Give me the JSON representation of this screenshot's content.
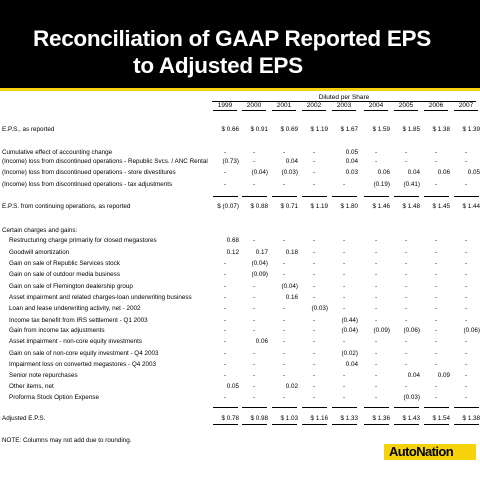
{
  "header": {
    "title_line1": "Reconciliation of GAAP Reported EPS",
    "title_line2": "to Adjusted EPS"
  },
  "table": {
    "diluted_label": "Diluted per Share",
    "years": [
      "1999",
      "2000",
      "2001",
      "2002",
      "2003",
      "2004",
      "2005",
      "2006",
      "2007"
    ],
    "rows": [
      {
        "label": "E.P.S., as reported",
        "values": [
          "$  0.66",
          "$  0.91",
          "$  0.69",
          "$  1.19",
          "$  1.67",
          "$  1.59",
          "$  1.85",
          "$  1.38",
          "$  1.39"
        ]
      },
      {
        "label": "Cumulative effect of accounting change",
        "values": [
          "-",
          "-",
          "-",
          "-",
          "0.05",
          "-",
          "-",
          "-",
          "-"
        ]
      },
      {
        "label": "(Income) loss from discontinued operations - Republic Svcs. / ANC Rental",
        "values": [
          "(0.73)",
          "-",
          "0.04",
          "-",
          "0.04",
          "-",
          "-",
          "-",
          "-"
        ]
      },
      {
        "label": "(Income) loss from discontinued operations - store divestitures",
        "values": [
          "-",
          "(0.04)",
          "(0.03)",
          "-",
          "0.03",
          "0.06",
          "0.04",
          "0.06",
          "0.05"
        ]
      },
      {
        "label": "(Income) loss from discontinued operations - tax adjustments",
        "values": [
          "-",
          "-",
          "-",
          "-",
          "-",
          "(0.19)",
          "(0.41)",
          "-",
          "-"
        ]
      },
      {
        "label": "E.P.S. from continuing operations, as reported",
        "values": [
          "$ (0.07)",
          "$  0.88",
          "$  0.71",
          "$  1.19",
          "$  1.80",
          "$  1.46",
          "$  1.48",
          "$  1.45",
          "$  1.44"
        ]
      },
      {
        "label": "Certain charges and gains:",
        "values": [
          "",
          "",
          "",
          "",
          "",
          "",
          "",
          "",
          ""
        ]
      },
      {
        "label": "Restructuring charge primarily for closed megastores",
        "values": [
          "0.68",
          "-",
          "-",
          "-",
          "-",
          "-",
          "-",
          "-",
          "-"
        ]
      },
      {
        "label": "Goodwill amortization",
        "values": [
          "0.12",
          "0.17",
          "0.18",
          "-",
          "-",
          "-",
          "-",
          "-",
          "-"
        ]
      },
      {
        "label": "Gain on sale of Republic Services stock",
        "values": [
          "-",
          "(0.04)",
          "-",
          "-",
          "-",
          "-",
          "-",
          "-",
          "-"
        ]
      },
      {
        "label": "Gain on sale of outdoor media business",
        "values": [
          "-",
          "(0.09)",
          "-",
          "-",
          "-",
          "-",
          "-",
          "-",
          "-"
        ]
      },
      {
        "label": "Gain on sale of Flemington dealership group",
        "values": [
          "-",
          "-",
          "(0.04)",
          "-",
          "-",
          "-",
          "-",
          "-",
          "-"
        ]
      },
      {
        "label": "Asset impairment and related charges-loan underwriting business",
        "values": [
          "-",
          "-",
          "0.16",
          "-",
          "-",
          "-",
          "-",
          "-",
          "-"
        ]
      },
      {
        "label": "Loan and lease underwriting activity, net - 2002",
        "values": [
          "-",
          "-",
          "-",
          "(0.03)",
          "-",
          "-",
          "-",
          "-",
          "-"
        ]
      },
      {
        "label": "Income tax benefit from IRS settlement - Q1 2003",
        "values": [
          "-",
          "-",
          "-",
          "-",
          "(0.44)",
          "-",
          "-",
          "-",
          "-"
        ]
      },
      {
        "label": "Gain from income tax adjustments",
        "values": [
          "-",
          "-",
          "-",
          "-",
          "(0.04)",
          "(0.09)",
          "(0.06)",
          "-",
          "(0.06)"
        ]
      },
      {
        "label": "Asset impairment - non-core equity investments",
        "values": [
          "-",
          "0.06",
          "-",
          "-",
          "-",
          "-",
          "-",
          "-",
          "-"
        ]
      },
      {
        "label": "Gain on sale of non-core equity investment - Q4 2003",
        "values": [
          "-",
          "-",
          "-",
          "-",
          "(0.02)",
          "-",
          "-",
          "-",
          "-"
        ]
      },
      {
        "label": "Impairment loss on converted megastores - Q4 2003",
        "values": [
          "-",
          "-",
          "-",
          "-",
          "0.04",
          "-",
          "-",
          "-",
          "-"
        ]
      },
      {
        "label": "Senior note repurchases",
        "values": [
          "-",
          "-",
          "-",
          "-",
          "-",
          "-",
          "0.04",
          "0.09",
          "-"
        ]
      },
      {
        "label": "Other items, net",
        "values": [
          "0.05",
          "-",
          "0.02",
          "-",
          "-",
          "-",
          "-",
          "-",
          "-"
        ]
      },
      {
        "label": "Proforma Stock Option Expense",
        "values": [
          "-",
          "-",
          "-",
          "-",
          "-",
          "-",
          "(0.03)",
          "-",
          "-"
        ]
      },
      {
        "label": "Adjusted E.P.S.",
        "values": [
          "$  0.78",
          "$  0.98",
          "$  1.03",
          "$  1.16",
          "$  1.33",
          "$  1.36",
          "$  1.43",
          "$  1.54",
          "$  1.38"
        ]
      }
    ]
  },
  "note": "NOTE: Columns may not add due to rounding.",
  "logo": {
    "text": "AutoNation",
    "brand_color": "#f5d20a"
  }
}
